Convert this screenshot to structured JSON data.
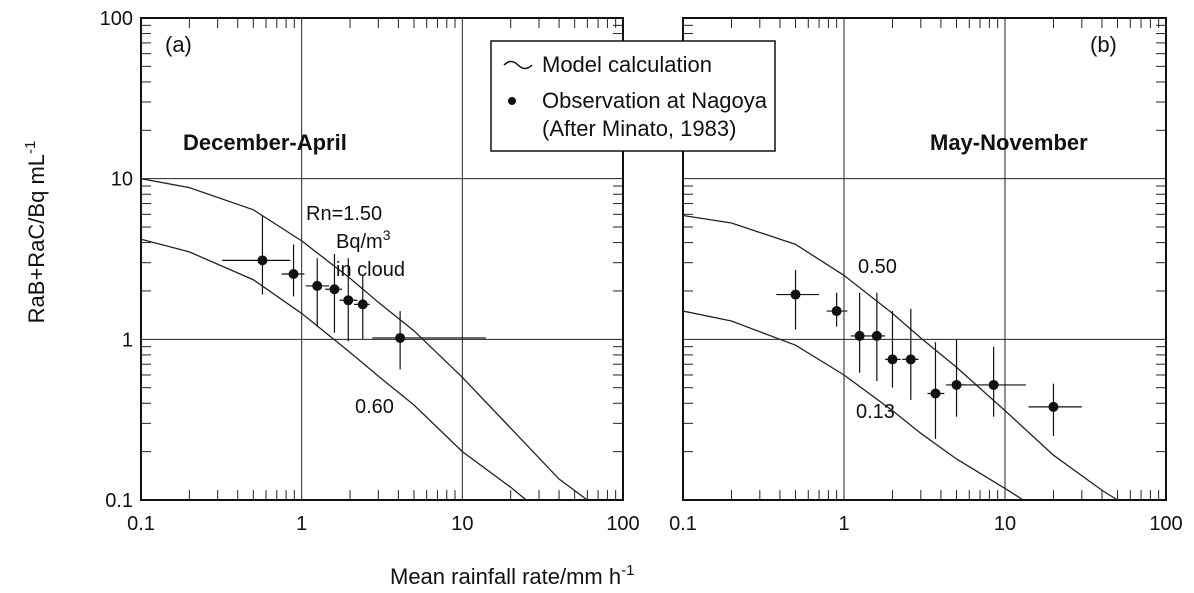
{
  "figure": {
    "ylabel": "RaB+RaC/Bq mL",
    "ylabel_sup": "-1",
    "xlabel": "Mean rainfall rate/mm h",
    "xlabel_sup": "-1",
    "legend": {
      "line_label": "Model calculation",
      "point_label": "Observation at Nagoya",
      "point_label_line2": "(After Minato, 1983)"
    }
  },
  "chart_data": [
    {
      "type": "scatter",
      "panel_label": "(a)",
      "title": "December-April",
      "xscale": "log",
      "yscale": "log",
      "xlim": [
        0.1,
        100
      ],
      "ylim": [
        0.1,
        100
      ],
      "x_ticks": [
        "0.1",
        "1",
        "10",
        "100"
      ],
      "y_ticks": [
        "0.1",
        "1",
        "10",
        "100"
      ],
      "grid": true,
      "observations": [
        {
          "x": 0.57,
          "y": 3.1,
          "xerr": [
            0.32,
            0.85
          ],
          "yerr": [
            1.9,
            5.9
          ]
        },
        {
          "x": 0.89,
          "y": 2.55,
          "xerr": [
            0.75,
            1.04
          ],
          "yerr": [
            1.85,
            3.9
          ]
        },
        {
          "x": 1.25,
          "y": 2.15,
          "xerr": [
            1.06,
            1.48
          ],
          "yerr": [
            1.2,
            3.2
          ]
        },
        {
          "x": 1.6,
          "y": 2.05,
          "xerr": [
            1.4,
            1.78
          ],
          "yerr": [
            1.1,
            3.4
          ]
        },
        {
          "x": 1.95,
          "y": 1.75,
          "xerr": [
            1.72,
            2.22
          ],
          "yerr": [
            0.97,
            3.2
          ]
        },
        {
          "x": 2.4,
          "y": 1.65,
          "xerr": [
            2.12,
            2.65
          ],
          "yerr": [
            1.0,
            2.5
          ]
        },
        {
          "x": 4.1,
          "y": 1.02,
          "xerr": [
            2.75,
            14.0
          ],
          "yerr": [
            0.65,
            1.5
          ]
        }
      ],
      "model_curves": [
        {
          "label": "Rn=1.50",
          "x": [
            0.1,
            0.2,
            0.5,
            1,
            2,
            3,
            5,
            10,
            20,
            40,
            60
          ],
          "y": [
            10.0,
            8.8,
            6.4,
            4.1,
            2.4,
            1.7,
            1.13,
            0.58,
            0.28,
            0.135,
            0.1
          ]
        },
        {
          "label": "0.60",
          "x": [
            0.1,
            0.2,
            0.5,
            1,
            2,
            3,
            5,
            10,
            20,
            25
          ],
          "y": [
            4.2,
            3.5,
            2.35,
            1.45,
            0.83,
            0.59,
            0.39,
            0.2,
            0.12,
            0.1
          ]
        }
      ],
      "annotations": [
        "Rn=1.50",
        "Bq/m",
        "3",
        "in cloud",
        "0.60"
      ]
    },
    {
      "type": "scatter",
      "panel_label": "(b)",
      "title": "May-November",
      "xscale": "log",
      "yscale": "log",
      "xlim": [
        0.1,
        100
      ],
      "ylim": [
        0.1,
        100
      ],
      "x_ticks": [
        "0.1",
        "1",
        "10",
        "100"
      ],
      "grid": true,
      "observations": [
        {
          "x": 0.5,
          "y": 1.9,
          "xerr": [
            0.38,
            0.7
          ],
          "yerr": [
            1.15,
            2.7
          ]
        },
        {
          "x": 0.9,
          "y": 1.5,
          "xerr": [
            0.78,
            1.05
          ],
          "yerr": [
            1.2,
            1.95
          ]
        },
        {
          "x": 1.25,
          "y": 1.05,
          "xerr": [
            1.1,
            1.45
          ],
          "yerr": [
            0.62,
            1.95
          ]
        },
        {
          "x": 1.6,
          "y": 1.05,
          "xerr": [
            1.45,
            1.8
          ],
          "yerr": [
            0.55,
            1.95
          ]
        },
        {
          "x": 2.0,
          "y": 0.75,
          "xerr": [
            1.8,
            2.25
          ],
          "yerr": [
            0.5,
            1.5
          ]
        },
        {
          "x": 2.6,
          "y": 0.75,
          "xerr": [
            2.3,
            2.9
          ],
          "yerr": [
            0.42,
            1.55
          ]
        },
        {
          "x": 3.7,
          "y": 0.46,
          "xerr": [
            3.3,
            4.2
          ],
          "yerr": [
            0.24,
            0.96
          ]
        },
        {
          "x": 5.0,
          "y": 0.52,
          "xerr": [
            4.3,
            5.8
          ],
          "yerr": [
            0.33,
            1.0
          ]
        },
        {
          "x": 8.5,
          "y": 0.52,
          "xerr": [
            5.2,
            13.5
          ],
          "yerr": [
            0.33,
            0.9
          ]
        },
        {
          "x": 20.0,
          "y": 0.38,
          "xerr": [
            14.0,
            30.0
          ],
          "yerr": [
            0.25,
            0.53
          ]
        }
      ],
      "model_curves": [
        {
          "label": "0.50",
          "x": [
            0.1,
            0.2,
            0.5,
            1,
            2,
            3,
            5,
            10,
            20,
            40,
            50
          ],
          "y": [
            5.9,
            5.3,
            3.9,
            2.5,
            1.45,
            1.02,
            0.67,
            0.36,
            0.19,
            0.115,
            0.1
          ]
        },
        {
          "label": "0.13",
          "x": [
            0.1,
            0.2,
            0.5,
            1,
            2,
            3,
            5,
            10,
            13
          ],
          "y": [
            1.5,
            1.3,
            0.92,
            0.6,
            0.36,
            0.26,
            0.18,
            0.118,
            0.1
          ]
        }
      ],
      "annotations": [
        "0.50",
        "0.13"
      ]
    }
  ]
}
